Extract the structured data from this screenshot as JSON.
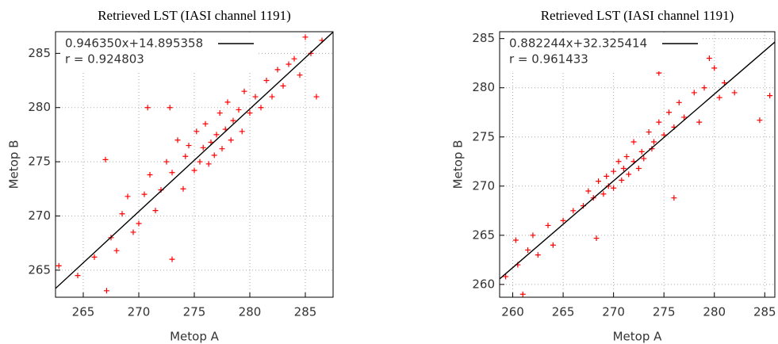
{
  "chart_data": [
    {
      "type": "scatter",
      "title": "Retrieved LST (IASI channel 1191)",
      "x_label": "Metop A",
      "y_label": "Metop B",
      "color": "#ff0000",
      "grid": true,
      "xlim": [
        262.5,
        287.5
      ],
      "ylim": [
        262.5,
        287
      ],
      "xticks": [
        265,
        270,
        275,
        280,
        285
      ],
      "yticks": [
        265,
        270,
        275,
        280,
        285
      ],
      "fit": {
        "label": "0.946350x+14.895358",
        "slope": 0.94635,
        "intercept": 14.895358,
        "color": "#000000"
      },
      "annotation": "r = 0.924803",
      "x": [
        262.8,
        264.5,
        266.0,
        267.1,
        267.0,
        267.5,
        268.0,
        268.5,
        269.0,
        269.5,
        270.0,
        270.5,
        271.0,
        271.5,
        272.0,
        272.5,
        273.0,
        273.0,
        273.5,
        274.0,
        274.2,
        274.5,
        275.0,
        275.2,
        275.5,
        275.8,
        276.0,
        276.3,
        276.5,
        276.8,
        277.0,
        277.3,
        277.5,
        277.8,
        278.0,
        278.3,
        278.5,
        279.0,
        279.3,
        279.5,
        280.0,
        280.5,
        281.0,
        281.5,
        282.0,
        282.5,
        283.0,
        283.5,
        284.0,
        284.5,
        285.0,
        285.5,
        286.0,
        286.5,
        270.8,
        272.8
      ],
      "values": [
        265.4,
        264.5,
        266.2,
        263.1,
        275.2,
        268.0,
        266.8,
        270.2,
        271.8,
        268.5,
        269.3,
        272.0,
        273.8,
        270.5,
        272.4,
        275.0,
        266.0,
        274.0,
        277.0,
        272.5,
        275.5,
        276.5,
        274.2,
        277.8,
        275.0,
        276.3,
        278.5,
        274.8,
        276.8,
        275.6,
        277.5,
        279.5,
        276.2,
        278.0,
        280.5,
        277.0,
        278.8,
        279.8,
        277.8,
        281.5,
        279.5,
        281.0,
        280.0,
        282.5,
        281.0,
        283.5,
        282.0,
        284.0,
        284.5,
        283.0,
        286.5,
        285.0,
        281.0,
        286.2,
        280.0,
        280.0
      ]
    },
    {
      "type": "scatter",
      "title": "Retrieved LST (IASI channel 1191)",
      "x_label": "Metop A",
      "y_label": "Metop B",
      "color": "#ff0000",
      "grid": true,
      "xlim": [
        258.7,
        286
      ],
      "ylim": [
        258.7,
        285.7
      ],
      "xticks": [
        260,
        265,
        270,
        275,
        280,
        285
      ],
      "yticks": [
        260,
        265,
        270,
        275,
        280,
        285
      ],
      "fit": {
        "label": "0.882244x+32.325414",
        "slope": 0.882244,
        "intercept": 32.325414,
        "color": "#000000"
      },
      "annotation": "r = 0.961433",
      "x": [
        259.3,
        260.3,
        260.5,
        261.0,
        261.5,
        262.0,
        262.5,
        263.5,
        264.0,
        265.0,
        266.0,
        267.0,
        267.5,
        268.0,
        268.3,
        268.5,
        269.0,
        269.3,
        269.5,
        270.0,
        270.0,
        270.5,
        270.8,
        271.0,
        271.3,
        271.5,
        272.0,
        272.0,
        272.5,
        272.8,
        273.0,
        273.5,
        273.8,
        274.0,
        274.5,
        275.0,
        275.5,
        276.0,
        276.5,
        277.0,
        278.0,
        278.5,
        279.0,
        279.5,
        280.0,
        280.5,
        281.0,
        282.0,
        284.5,
        285.5,
        274.5,
        276.0
      ],
      "values": [
        260.8,
        264.5,
        262.0,
        259.0,
        263.5,
        265.0,
        263.0,
        266.0,
        264.0,
        266.5,
        267.5,
        268.0,
        269.5,
        268.8,
        264.7,
        270.5,
        269.2,
        271.0,
        270.0,
        271.5,
        269.8,
        272.5,
        270.6,
        271.8,
        273.0,
        271.2,
        272.5,
        274.5,
        271.8,
        273.5,
        272.8,
        275.5,
        273.8,
        274.5,
        276.5,
        275.2,
        277.5,
        276.0,
        278.5,
        277.0,
        279.5,
        276.5,
        280.0,
        283.0,
        282.0,
        279.0,
        280.5,
        279.5,
        276.7,
        279.2,
        281.5,
        268.8
      ]
    }
  ]
}
